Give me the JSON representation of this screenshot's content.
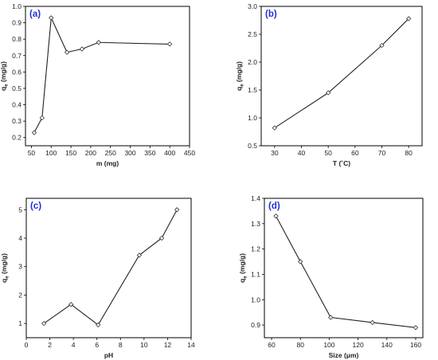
{
  "chart_data": [
    {
      "type": "line",
      "panel_label": "(a)",
      "xlabel": "m (mg)",
      "ylabel_main": "q",
      "ylabel_sub": "e",
      "ylabel_unit": " (mg/g)",
      "xlim": [
        35,
        450
      ],
      "ylim": [
        0.15,
        1.0
      ],
      "xticks": [
        50,
        100,
        150,
        200,
        250,
        300,
        350,
        400,
        450
      ],
      "yticks": [
        0.2,
        0.3,
        0.4,
        0.5,
        0.6,
        0.7,
        0.8,
        0.9,
        1.0
      ],
      "x": [
        57,
        77,
        100,
        140,
        178,
        220,
        400
      ],
      "y": [
        0.23,
        0.32,
        0.93,
        0.72,
        0.74,
        0.78,
        0.77
      ],
      "grid": false
    },
    {
      "type": "line",
      "panel_label": "(b)",
      "xlabel": "T (˚C)",
      "ylabel_main": "q",
      "ylabel_sub": "e",
      "ylabel_unit": " (mg/g)",
      "xlim": [
        25,
        85
      ],
      "ylim": [
        0.5,
        3.0
      ],
      "xticks": [
        30,
        40,
        50,
        60,
        70,
        80
      ],
      "yticks": [
        0.5,
        1.0,
        1.5,
        2.0,
        2.5,
        3.0
      ],
      "x": [
        30,
        50,
        70,
        80
      ],
      "y": [
        0.82,
        1.45,
        2.3,
        2.78
      ],
      "grid": false
    },
    {
      "type": "line",
      "panel_label": "(c)",
      "xlabel": "pH",
      "ylabel_main": "q",
      "ylabel_sub": "e",
      "ylabel_unit": " (mg/g)",
      "xlim": [
        0,
        14
      ],
      "ylim": [
        0.5,
        5.4
      ],
      "xticks": [
        0,
        2,
        4,
        6,
        8,
        10,
        12,
        14
      ],
      "yticks": [
        1,
        2,
        3,
        4,
        5
      ],
      "x": [
        1.5,
        3.8,
        6.1,
        9.6,
        11.5,
        12.8
      ],
      "y": [
        1.0,
        1.67,
        0.95,
        3.4,
        4.0,
        5.0
      ],
      "grid": false
    },
    {
      "type": "line",
      "panel_label": "(d)",
      "xlabel": "Size (μm)",
      "ylabel_main": "q",
      "ylabel_sub": "e",
      "ylabel_unit": " (mg/g)",
      "xlim": [
        55,
        165
      ],
      "ylim": [
        0.85,
        1.4
      ],
      "xticks": [
        60,
        80,
        100,
        120,
        140,
        160
      ],
      "yticks": [
        0.9,
        1.0,
        1.1,
        1.2,
        1.3,
        1.4
      ],
      "x": [
        63,
        80,
        101,
        130,
        160
      ],
      "y": [
        1.33,
        1.15,
        0.93,
        0.91,
        0.89
      ],
      "grid": false
    }
  ]
}
